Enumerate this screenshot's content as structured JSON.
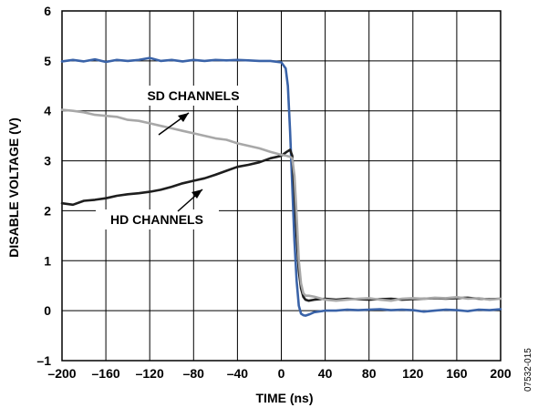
{
  "chart_data": {
    "type": "line",
    "title": "",
    "xlabel": "TIME (ns)",
    "ylabel": "DISABLE VOLTAGE (V)",
    "xlim": [
      -200,
      200
    ],
    "ylim": [
      -1,
      6
    ],
    "x_ticks": [
      -200,
      -160,
      -120,
      -80,
      -40,
      0,
      40,
      80,
      120,
      160,
      200
    ],
    "x_tick_labels": [
      "–200",
      "–160",
      "–120",
      "–80",
      "–40",
      "0",
      "40",
      "80",
      "120",
      "160",
      "200"
    ],
    "y_ticks": [
      -1,
      0,
      1,
      2,
      3,
      4,
      5,
      6
    ],
    "y_tick_labels": [
      "–1",
      "0",
      "1",
      "2",
      "3",
      "4",
      "5",
      "6"
    ],
    "grid": true,
    "figure_code": "07532-015",
    "annotations": [
      {
        "text": "SD CHANNELS",
        "points_to_series": "sd"
      },
      {
        "text": "HD CHANNELS",
        "points_to_series": "hd"
      }
    ],
    "series": [
      {
        "id": "disable",
        "color": "#3a63a8",
        "x": [
          -200,
          -190,
          -180,
          -170,
          -160,
          -150,
          -140,
          -130,
          -120,
          -110,
          -100,
          -90,
          -80,
          -70,
          -60,
          -50,
          -40,
          -30,
          -20,
          -10,
          0,
          4,
          6,
          8,
          10,
          12,
          14,
          16,
          18,
          20,
          22,
          26,
          30,
          40,
          50,
          60,
          70,
          80,
          90,
          100,
          110,
          120,
          130,
          140,
          150,
          160,
          170,
          180,
          190,
          200
        ],
        "y": [
          4.99,
          5.02,
          4.99,
          5.03,
          4.98,
          5.02,
          5.0,
          5.02,
          5.06,
          5.0,
          5.02,
          4.99,
          5.02,
          5.0,
          5.02,
          5.01,
          5.02,
          5.01,
          5.0,
          5.0,
          4.97,
          4.85,
          4.5,
          3.6,
          2.5,
          1.4,
          0.6,
          0.1,
          -0.06,
          -0.09,
          -0.1,
          -0.07,
          -0.03,
          0.0,
          0.0,
          0.02,
          0.01,
          0.02,
          0.03,
          0.01,
          0.02,
          0.01,
          -0.02,
          0.0,
          0.02,
          0.01,
          -0.01,
          0.02,
          0.01,
          0.03
        ]
      },
      {
        "id": "hd",
        "color": "#1e1e1e",
        "x": [
          -200,
          -190,
          -180,
          -170,
          -160,
          -150,
          -140,
          -130,
          -120,
          -110,
          -100,
          -90,
          -80,
          -70,
          -60,
          -50,
          -40,
          -30,
          -20,
          -10,
          0,
          5,
          8,
          10,
          12,
          14,
          16,
          18,
          20,
          22,
          25,
          30,
          40,
          50,
          60,
          70,
          80,
          90,
          100,
          110,
          120,
          130,
          140,
          150,
          160,
          170,
          180,
          190,
          200
        ],
        "y": [
          2.15,
          2.12,
          2.2,
          2.22,
          2.25,
          2.3,
          2.33,
          2.35,
          2.38,
          2.42,
          2.48,
          2.55,
          2.6,
          2.65,
          2.72,
          2.8,
          2.88,
          2.92,
          2.97,
          3.05,
          3.1,
          3.18,
          3.22,
          3.1,
          2.4,
          1.5,
          0.8,
          0.45,
          0.28,
          0.22,
          0.2,
          0.22,
          0.24,
          0.22,
          0.24,
          0.23,
          0.22,
          0.23,
          0.24,
          0.22,
          0.23,
          0.24,
          0.25,
          0.24,
          0.25,
          0.26,
          0.24,
          0.23,
          0.24
        ]
      },
      {
        "id": "sd",
        "color": "#a8a8a8",
        "x": [
          -200,
          -190,
          -180,
          -170,
          -160,
          -150,
          -140,
          -130,
          -120,
          -110,
          -100,
          -90,
          -80,
          -70,
          -60,
          -50,
          -40,
          -30,
          -20,
          -10,
          0,
          5,
          8,
          10,
          12,
          14,
          16,
          18,
          20,
          22,
          25,
          30,
          40,
          50,
          60,
          70,
          80,
          90,
          100,
          110,
          120,
          130,
          140,
          150,
          160,
          170,
          180,
          190,
          200
        ],
        "y": [
          4.02,
          4.0,
          3.97,
          3.92,
          3.9,
          3.88,
          3.82,
          3.8,
          3.75,
          3.7,
          3.65,
          3.6,
          3.55,
          3.5,
          3.45,
          3.42,
          3.35,
          3.3,
          3.25,
          3.18,
          3.12,
          3.1,
          3.08,
          3.05,
          2.7,
          1.9,
          1.0,
          0.55,
          0.35,
          0.3,
          0.3,
          0.28,
          0.22,
          0.2,
          0.22,
          0.24,
          0.25,
          0.22,
          0.2,
          0.24,
          0.25,
          0.24,
          0.26,
          0.25,
          0.27,
          0.24,
          0.25,
          0.22,
          0.24
        ]
      }
    ]
  }
}
